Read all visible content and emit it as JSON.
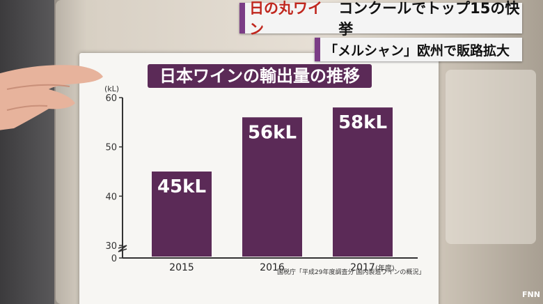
{
  "ticker": {
    "line1_red": "日の丸ワイン",
    "line1_black": "コンクールでトップ15の快挙",
    "line2": "「メルシャン」欧州で販路拡大"
  },
  "chart_title": "日本ワインの輸出量の推移",
  "source_note": "国税庁「平成29年度調査分 国内製造ワインの概況」",
  "colors": {
    "bar": "#5b2a57",
    "title_bg": "#5b2a57",
    "ticker_accent": "#7b3d86",
    "ticker_red": "#c0271e"
  },
  "chart_data": {
    "type": "bar",
    "title": "日本ワインの輸出量の推移",
    "categories": [
      "2015",
      "2016",
      "2017"
    ],
    "category_suffix": "(年度)",
    "values": [
      45,
      56,
      58
    ],
    "data_labels": [
      "45kL",
      "56kL",
      "58kL"
    ],
    "unit": "(kL)",
    "ylim": [
      30,
      60
    ],
    "axis_break": true,
    "yticks": [
      0,
      30,
      40,
      50,
      60
    ],
    "grid": false,
    "legend": "none"
  }
}
